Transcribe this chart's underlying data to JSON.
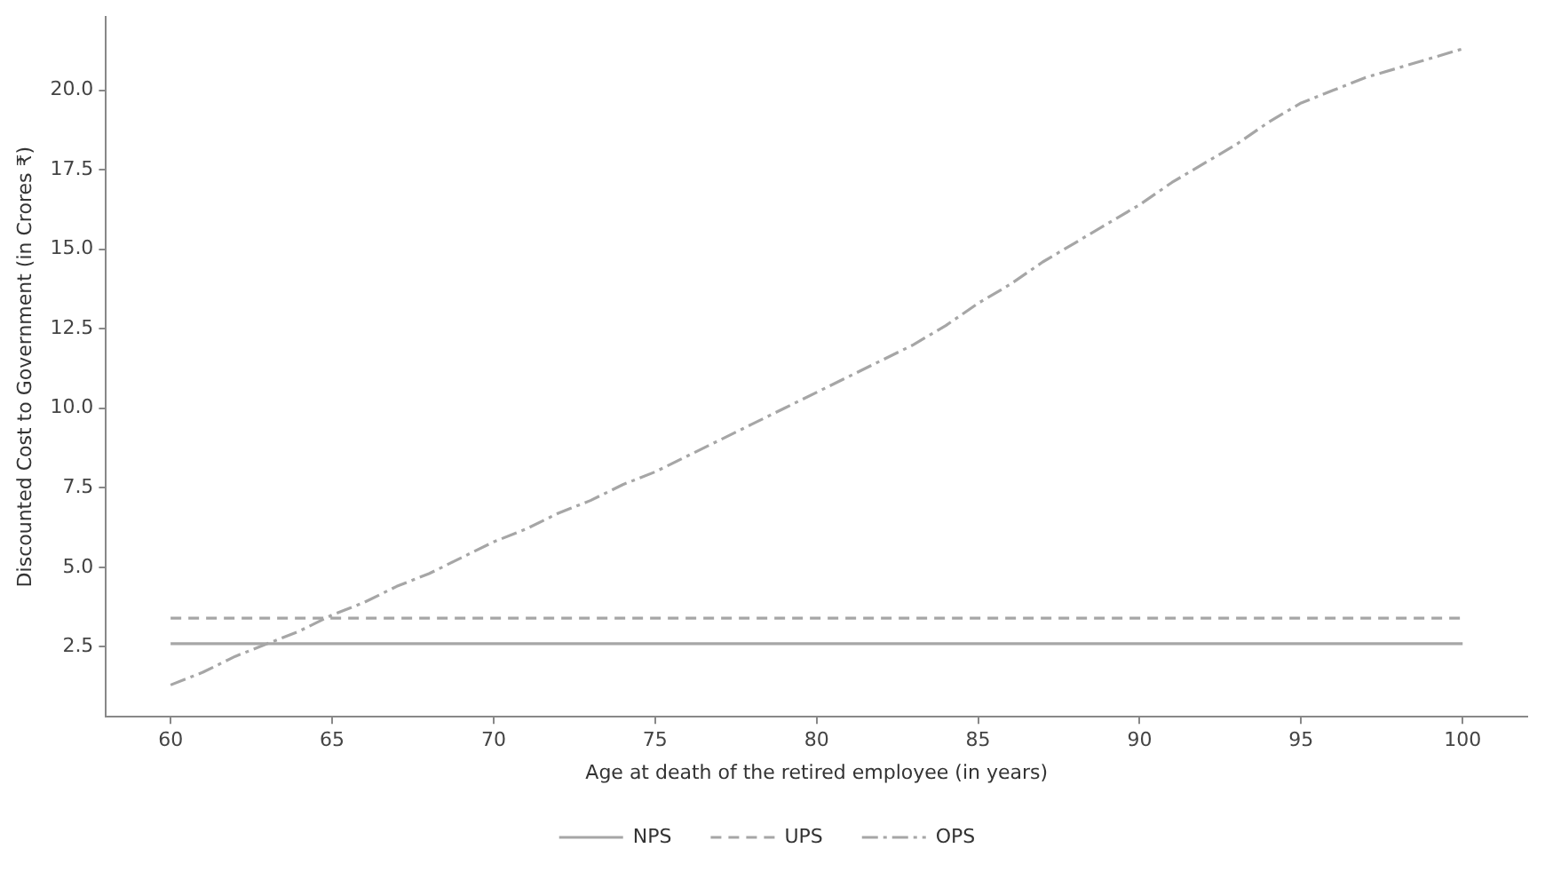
{
  "chart_data": {
    "type": "line",
    "xlabel": "Age at death of the retired employee (in years)",
    "ylabel": "Discounted Cost to Government (in Crores ₹)",
    "x": [
      60,
      61,
      62,
      63,
      64,
      65,
      66,
      67,
      68,
      69,
      70,
      71,
      72,
      73,
      74,
      75,
      76,
      77,
      78,
      79,
      80,
      81,
      82,
      83,
      84,
      85,
      86,
      87,
      88,
      89,
      90,
      91,
      92,
      93,
      94,
      95,
      96,
      97,
      98,
      99,
      100
    ],
    "series": [
      {
        "name": "NPS",
        "color": "#a6a6a6",
        "line_style": "solid",
        "values": [
          2.6,
          2.6,
          2.6,
          2.6,
          2.6,
          2.6,
          2.6,
          2.6,
          2.6,
          2.6,
          2.6,
          2.6,
          2.6,
          2.6,
          2.6,
          2.6,
          2.6,
          2.6,
          2.6,
          2.6,
          2.6,
          2.6,
          2.6,
          2.6,
          2.6,
          2.6,
          2.6,
          2.6,
          2.6,
          2.6,
          2.6,
          2.6,
          2.6,
          2.6,
          2.6,
          2.6,
          2.6,
          2.6,
          2.6,
          2.6,
          2.6
        ]
      },
      {
        "name": "UPS",
        "color": "#a6a6a6",
        "line_style": "dashed",
        "values": [
          3.4,
          3.4,
          3.4,
          3.4,
          3.4,
          3.4,
          3.4,
          3.4,
          3.4,
          3.4,
          3.4,
          3.4,
          3.4,
          3.4,
          3.4,
          3.4,
          3.4,
          3.4,
          3.4,
          3.4,
          3.4,
          3.4,
          3.4,
          3.4,
          3.4,
          3.4,
          3.4,
          3.4,
          3.4,
          3.4,
          3.4,
          3.4,
          3.4,
          3.4,
          3.4,
          3.4,
          3.4,
          3.4,
          3.4,
          3.4,
          3.4
        ]
      },
      {
        "name": "OPS",
        "color": "#a6a6a6",
        "line_style": "dashdot",
        "values": [
          1.3,
          1.7,
          2.2,
          2.6,
          3.0,
          3.5,
          3.9,
          4.4,
          4.8,
          5.3,
          5.8,
          6.2,
          6.7,
          7.1,
          7.6,
          8.0,
          8.5,
          9.0,
          9.5,
          10.0,
          10.5,
          11.0,
          11.5,
          12.0,
          12.6,
          13.3,
          13.9,
          14.6,
          15.2,
          15.8,
          16.4,
          17.1,
          17.7,
          18.3,
          19.0,
          19.6,
          20.0,
          20.4,
          20.7,
          21.0,
          21.3
        ]
      }
    ],
    "xlim": [
      58,
      102
    ],
    "xticks": [
      60,
      65,
      70,
      75,
      80,
      85,
      90,
      95,
      100
    ],
    "ylim": [
      0.3,
      22.3
    ],
    "yticks": [
      2.5,
      {
        "value": 5,
        "label": "5.0"
      },
      7.5,
      {
        "value": 10,
        "label": "10.0"
      },
      12.5,
      {
        "value": 15,
        "label": "15.0"
      },
      17.5,
      {
        "value": 20,
        "label": "20.0"
      }
    ],
    "grid": false,
    "legend": "bottom",
    "marker": "none"
  }
}
